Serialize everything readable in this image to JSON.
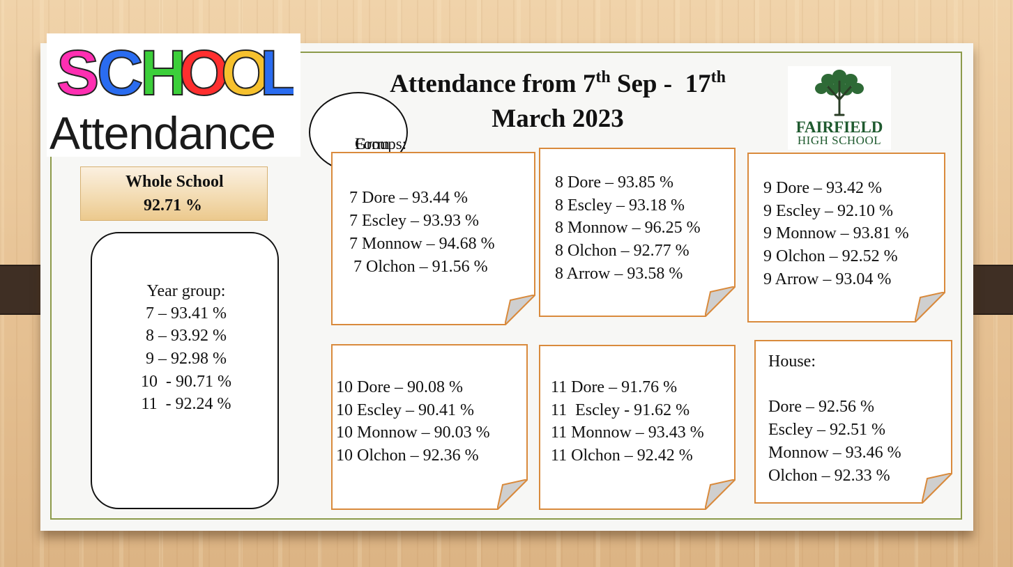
{
  "logo": {
    "school_word": "SCHOOL",
    "attendance_word": "Attendance",
    "letter_colors": [
      "#ff2fb2",
      "#2a6cf0",
      "#3ccf3a",
      "#ff2f2f",
      "#f6c12e",
      "#2a6cf0"
    ]
  },
  "title": {
    "prefix": "Attendance from 7",
    "sup1": "th",
    "middle": " Sep -  17",
    "sup2": "th",
    "line2": "March 2023"
  },
  "school_logo": {
    "name": "FAIRFIELD",
    "subtitle": "HIGH SCHOOL",
    "icon": "tree-icon"
  },
  "form_groups_label": [
    "Form",
    "Groups:"
  ],
  "whole_school": {
    "label": "Whole School",
    "value": "92.71 %"
  },
  "year_group": {
    "heading": "Year group:",
    "items": [
      "7 – 93.41 %",
      "8 – 93.92 %",
      "9 – 92.98 %",
      "10  - 90.71 %",
      "11  - 92.24 %"
    ]
  },
  "year7": [
    "7 Dore – 93.44 %",
    "7 Escley – 93.93 %",
    "7 Monnow – 94.68 %",
    " 7 Olchon – 91.56 %"
  ],
  "year8": [
    "8 Dore – 93.85 %",
    "8 Escley – 93.18 %",
    "8 Monnow – 96.25 %",
    "8 Olchon – 92.77 %",
    "8 Arrow – 93.58 %"
  ],
  "year9": [
    "9 Dore – 93.42 %",
    "9 Escley – 92.10 %",
    "9 Monnow – 93.81 %",
    "9 Olchon – 92.52 %",
    "9 Arrow – 93.04 %"
  ],
  "year10": [
    "10 Dore – 90.08 %",
    "10 Escley – 90.41 %",
    "10 Monnow – 90.03 %",
    "10 Olchon – 92.36 %"
  ],
  "year11": [
    "11 Dore – 91.76 %",
    "11  Escley - 91.62 %",
    "11 Monnow – 93.43 %",
    "11 Olchon – 92.42 %"
  ],
  "house": {
    "heading": "House:",
    "items": [
      "Dore – 92.56 %",
      "Escley – 92.51 %",
      "Monnow – 93.46 %",
      "Olchon – 92.33 %"
    ]
  },
  "colors": {
    "note_border": "#d98a3c",
    "frame": "#8c9a4a",
    "fairfield_green": "#1f5a2f"
  }
}
